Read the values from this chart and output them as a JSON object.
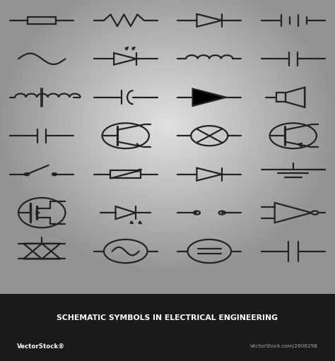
{
  "title": "SCHEMATIC SYMBOLS IN ELECTRICAL ENGINEERING",
  "footer_text1": "VectorStock®",
  "footer_text2": "VectorStock.com/2606298",
  "line_color": "#222222",
  "lw": 1.6,
  "title_bg": "#1a1a1a",
  "symbols": "all drawn in code"
}
